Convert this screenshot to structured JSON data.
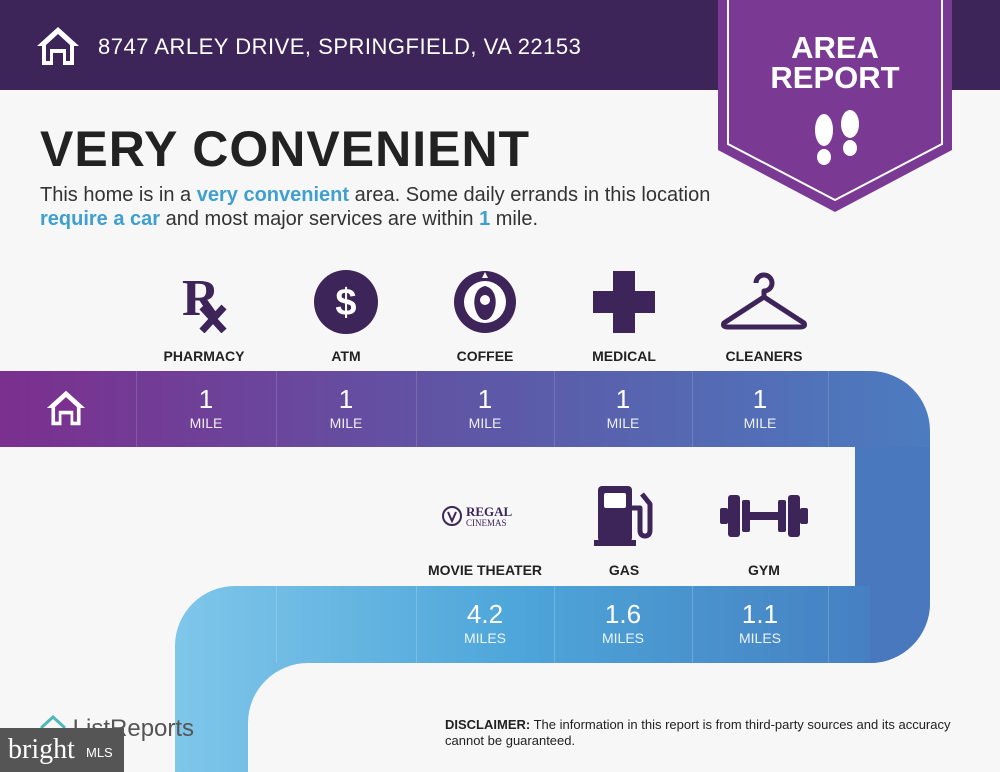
{
  "header": {
    "address": "8747 ARLEY DRIVE, SPRINGFIELD, VA 22153"
  },
  "badge": {
    "line1": "AREA",
    "line2": "REPORT",
    "accent": "#7a3a93"
  },
  "headline": "VERY CONVENIENT",
  "intro": {
    "p1": "This home is in a ",
    "h1": "very convenient",
    "p2": " area. Some daily errands in this location ",
    "h2": "require a car",
    "p3": " and most major services are within ",
    "h3": "1",
    "p4": " mile."
  },
  "row1": [
    {
      "label": "PHARMACY",
      "icon": "rx-icon",
      "value": "1",
      "unit": "MILE"
    },
    {
      "label": "ATM",
      "icon": "dollar-icon",
      "value": "1",
      "unit": "MILE"
    },
    {
      "label": "COFFEE",
      "icon": "starbucks-logo",
      "value": "1",
      "unit": "MILE"
    },
    {
      "label": "MEDICAL",
      "icon": "medical-cross-icon",
      "value": "1",
      "unit": "MILE"
    },
    {
      "label": "CLEANERS",
      "icon": "hanger-icon",
      "value": "1",
      "unit": "MILE"
    }
  ],
  "row2": [
    {
      "label": "MOVIE THEATER",
      "icon": "regal-cinemas-logo",
      "logo_text1": "REGAL",
      "logo_text2": "CINEMAS",
      "value": "4.2",
      "unit": "MILES"
    },
    {
      "label": "GAS",
      "icon": "gas-pump-icon",
      "value": "1.6",
      "unit": "MILES"
    },
    {
      "label": "GYM",
      "icon": "dumbbell-icon",
      "value": "1.1",
      "unit": "MILES"
    }
  ],
  "disclaimer": {
    "label": "DISCLAIMER:",
    "text": " The information in this report is from third-party sources and its accuracy cannot be guaranteed."
  },
  "footer": {
    "brand": "ListReports",
    "watermark": "bright",
    "watermark_sub": "MLS"
  },
  "colors": {
    "header": "#3d2459",
    "icon": "#3d2459",
    "highlight": "#3fa0cf"
  }
}
